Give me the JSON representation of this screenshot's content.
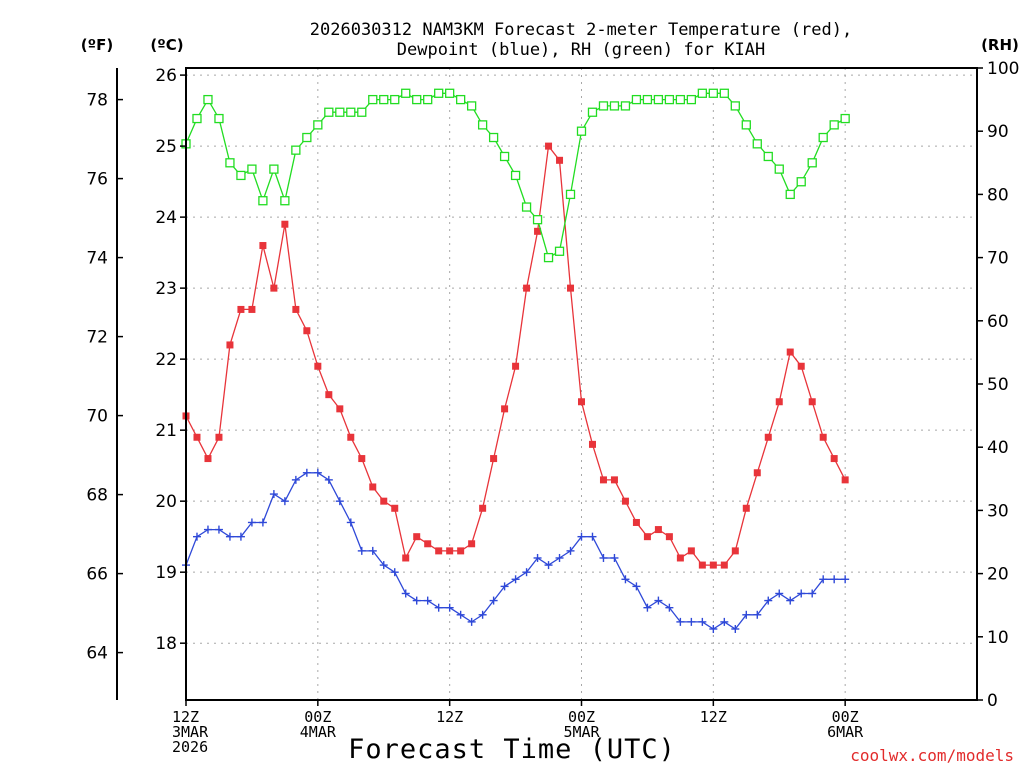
{
  "chart_data": {
    "type": "line",
    "title_line1": "2026030312 NAM3KM Forecast 2-meter Temperature (red),",
    "title_line2": "Dewpoint (blue), RH (green) for KIAH",
    "xlabel": "Forecast Time (UTC)",
    "credit": "coolwx.com/models",
    "x_range_hours": [
      0,
      72
    ],
    "x_ticks": [
      {
        "h": 0,
        "lines": [
          "12Z",
          "3MAR",
          "2026"
        ]
      },
      {
        "h": 12,
        "lines": [
          "00Z",
          "4MAR"
        ]
      },
      {
        "h": 24,
        "lines": [
          "12Z"
        ]
      },
      {
        "h": 36,
        "lines": [
          "00Z",
          "5MAR"
        ]
      },
      {
        "h": 48,
        "lines": [
          "12Z"
        ]
      },
      {
        "h": 60,
        "lines": [
          "00Z",
          "6MAR"
        ]
      }
    ],
    "y_left_f": {
      "unit": "(ºF)",
      "range": [
        62.8,
        78.8
      ],
      "ticks": [
        64,
        66,
        68,
        70,
        72,
        74,
        76,
        78
      ]
    },
    "y_left_c": {
      "unit": "(ºC)",
      "range": [
        17.2,
        26.1
      ],
      "ticks": [
        18,
        19,
        20,
        21,
        22,
        23,
        24,
        25,
        26
      ]
    },
    "y_right_rh": {
      "unit": "(RH)",
      "range": [
        0,
        100
      ],
      "ticks": [
        0,
        10,
        20,
        30,
        40,
        50,
        60,
        70,
        80,
        90,
        100
      ]
    },
    "hours": [
      0,
      1,
      2,
      3,
      4,
      5,
      6,
      7,
      8,
      9,
      10,
      11,
      12,
      13,
      14,
      15,
      16,
      17,
      18,
      19,
      20,
      21,
      22,
      23,
      24,
      25,
      26,
      27,
      28,
      29,
      30,
      31,
      32,
      33,
      34,
      35,
      36,
      37,
      38,
      39,
      40,
      41,
      42,
      43,
      44,
      45,
      46,
      47,
      48,
      49,
      50,
      51,
      52,
      53,
      54,
      55,
      56,
      57,
      58,
      59,
      60
    ],
    "series": [
      {
        "name": "Temperature",
        "units": "°C",
        "color": "#e8343a",
        "marker": "filled-square",
        "values": [
          21.2,
          20.9,
          20.6,
          20.9,
          22.2,
          22.7,
          22.7,
          23.6,
          23.0,
          23.9,
          22.7,
          22.4,
          21.9,
          21.5,
          21.3,
          20.9,
          20.6,
          20.2,
          20.0,
          19.9,
          19.2,
          19.5,
          19.4,
          19.3,
          19.3,
          19.3,
          19.4,
          19.9,
          20.6,
          21.3,
          21.9,
          23.0,
          23.8,
          25.0,
          24.8,
          23.0,
          21.4,
          20.8,
          20.3,
          20.3,
          20.0,
          19.7,
          19.5,
          19.6,
          19.5,
          19.2,
          19.3,
          19.1,
          19.1,
          19.1,
          19.3,
          19.9,
          20.4,
          20.9,
          21.4,
          22.1,
          21.9,
          21.4,
          20.9,
          20.6,
          20.3
        ]
      },
      {
        "name": "Dewpoint",
        "units": "°C",
        "color": "#2f49d8",
        "marker": "plus",
        "values": [
          19.1,
          19.5,
          19.6,
          19.6,
          19.5,
          19.5,
          19.7,
          19.7,
          20.1,
          20.0,
          20.3,
          20.4,
          20.4,
          20.3,
          20.0,
          19.7,
          19.3,
          19.3,
          19.1,
          19.0,
          18.7,
          18.6,
          18.6,
          18.5,
          18.5,
          18.4,
          18.3,
          18.4,
          18.6,
          18.8,
          18.9,
          19.0,
          19.2,
          19.1,
          19.2,
          19.3,
          19.5,
          19.5,
          19.2,
          19.2,
          18.9,
          18.8,
          18.5,
          18.6,
          18.5,
          18.3,
          18.3,
          18.3,
          18.2,
          18.3,
          18.2,
          18.4,
          18.4,
          18.6,
          18.7,
          18.6,
          18.7,
          18.7,
          18.9,
          18.9,
          18.9
        ]
      },
      {
        "name": "Relative Humidity",
        "units": "%",
        "color": "#22dd22",
        "marker": "open-square",
        "values": [
          88,
          92,
          95,
          92,
          85,
          83,
          84,
          79,
          84,
          79,
          87,
          89,
          91,
          93,
          93,
          93,
          93,
          95,
          95,
          95,
          96,
          95,
          95,
          96,
          96,
          95,
          94,
          91,
          89,
          86,
          83,
          78,
          76,
          70,
          71,
          80,
          90,
          93,
          94,
          94,
          94,
          95,
          95,
          95,
          95,
          95,
          95,
          96,
          96,
          96,
          94,
          91,
          88,
          86,
          84,
          80,
          82,
          85,
          89,
          91,
          92
        ]
      }
    ]
  }
}
